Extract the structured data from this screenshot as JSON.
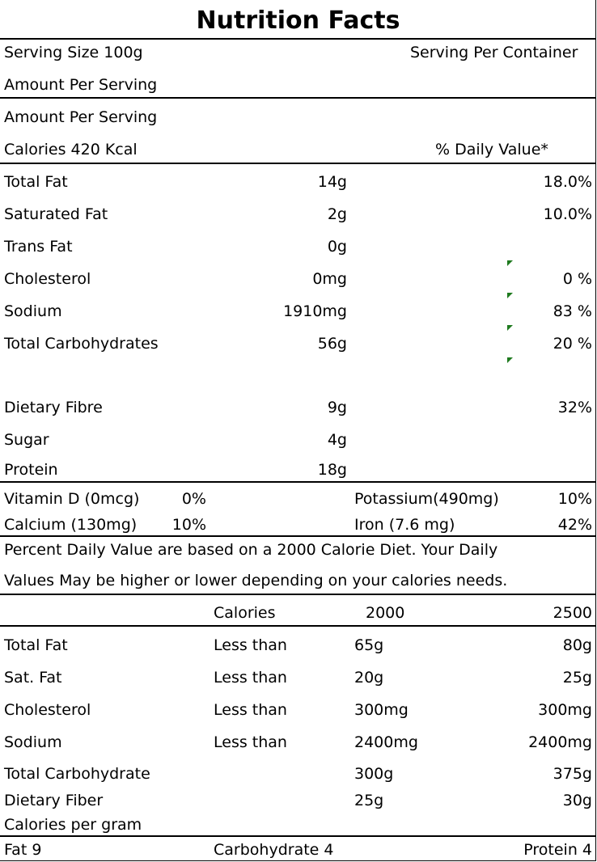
{
  "title": "Nutrition Facts",
  "header": {
    "serving_size": "Serving Size 100g",
    "serving_per_container": "Serving Per Container",
    "amount_per_serving_1": "Amount Per Serving",
    "amount_per_serving_2": "Amount Per Serving",
    "calories": "Calories 420 Kcal",
    "daily_value_heading": "% Daily Value*"
  },
  "nutrients": [
    {
      "name": "Total Fat",
      "amount": "14g",
      "dv": "18.0%"
    },
    {
      "name": "Saturated Fat",
      "amount": "2g",
      "dv": "10.0%"
    },
    {
      "name": "Trans Fat",
      "amount": "0g",
      "dv": ""
    },
    {
      "name": "Cholesterol",
      "amount": "0mg",
      "dv": "0 %"
    },
    {
      "name": "Sodium",
      "amount": "1910mg",
      "dv": "83 %"
    },
    {
      "name": "Total Carbohydrates",
      "amount": "56g",
      "dv": "20 %"
    },
    {
      "name": "Dietary Fibre",
      "amount": "9g",
      "dv": "32%"
    },
    {
      "name": "Sugar",
      "amount": "4g",
      "dv": ""
    },
    {
      "name": "Protein",
      "amount": "18g",
      "dv": ""
    }
  ],
  "vitamins": [
    {
      "left_name": "Vitamin D (0mcg)",
      "left_pct": "0%",
      "right_name": "Potassium(490mg)",
      "right_pct": "10%"
    },
    {
      "left_name": "Calcium (130mg)",
      "left_pct": "10%",
      "right_name": "Iron (7.6 mg)",
      "right_pct": "42%"
    }
  ],
  "footnote": {
    "line1": "Percent  Daily  Value are based on a  2000 Calorie Diet. Your Daily",
    "line2": "Values May be higher or lower depending on your calories needs."
  },
  "reference": {
    "header": {
      "calories": "Calories",
      "col1": "2000",
      "col2": "2500"
    },
    "rows": [
      {
        "name": "Total Fat",
        "qualifier": "Less than",
        "v1": "65g",
        "v2": "80g"
      },
      {
        "name": "Sat. Fat",
        "qualifier": "Less than",
        "v1": "20g",
        "v2": "25g"
      },
      {
        "name": "Cholesterol",
        "qualifier": "Less than",
        "v1": "300mg",
        "v2": "300mg"
      },
      {
        "name": "Sodium",
        "qualifier": "Less than",
        "v1": "2400mg",
        "v2": "2400mg"
      },
      {
        "name": "Total Carbohydrate",
        "qualifier": "",
        "v1": "300g",
        "v2": "375g"
      },
      {
        "name": "Dietary Fiber",
        "qualifier": "",
        "v1": "25g",
        "v2": "30g"
      }
    ],
    "calories_per_gram": "Calories per gram",
    "fat": "Fat 9",
    "carbohydrate": "Carbohydrate 4",
    "protein": "Protein 4"
  },
  "colors": {
    "comment_marker": "#1f7a1f",
    "rule": "#000000"
  }
}
